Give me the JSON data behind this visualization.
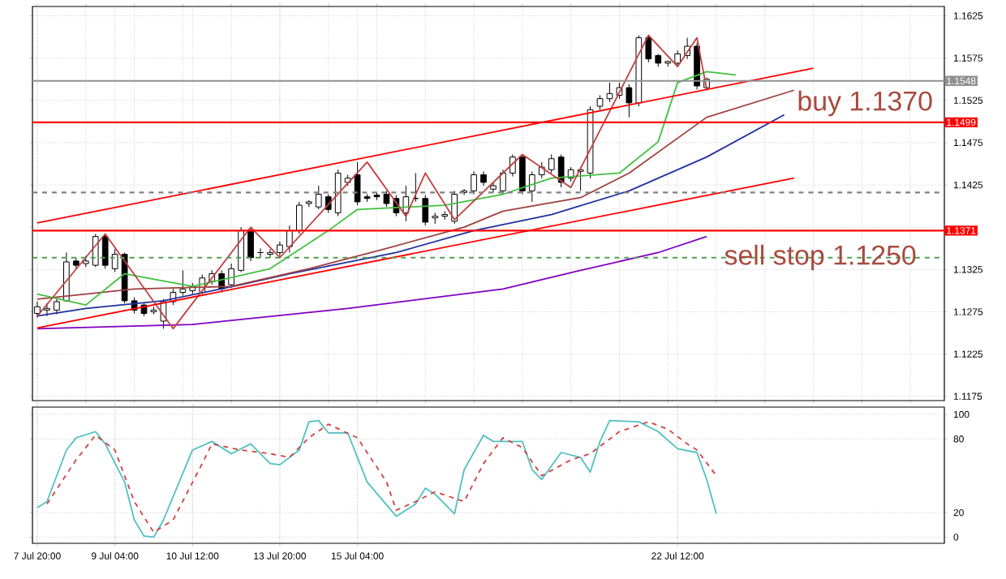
{
  "chart_data": [
    {
      "type": "candlestick",
      "categories": [
        null,
        null,
        null,
        null,
        null,
        null,
        null,
        null,
        null,
        null,
        null,
        null,
        null,
        null,
        null,
        null,
        null,
        null,
        null,
        null,
        null,
        null,
        null,
        null,
        null,
        null,
        null,
        null,
        null,
        null,
        null,
        null,
        null,
        null,
        null,
        null,
        null,
        null,
        null,
        null,
        null,
        null,
        null,
        null,
        null,
        null,
        null,
        null,
        null,
        null,
        null,
        null,
        null,
        null,
        null,
        null,
        null,
        null,
        null,
        null,
        null,
        null,
        null,
        null,
        null,
        null,
        null,
        null,
        null,
        null,
        null,
        null,
        null,
        null,
        null,
        null,
        null,
        null,
        null,
        null,
        null,
        null,
        null,
        null,
        null,
        null,
        null,
        null,
        null,
        null,
        null,
        null,
        null,
        null
      ],
      "ohlc": [
        [
          1.1273,
          1.1287,
          1.1268,
          1.1281
        ],
        [
          1.1277,
          1.1285,
          1.127,
          1.1279
        ],
        [
          1.1277,
          1.129,
          1.1272,
          1.1287
        ],
        [
          1.1288,
          1.1345,
          1.1287,
          1.1334
        ],
        [
          1.1335,
          1.1339,
          1.1326,
          1.133
        ],
        [
          1.1332,
          1.1341,
          1.1328,
          1.1335
        ],
        [
          1.133,
          1.1367,
          1.1328,
          1.1364
        ],
        [
          1.1364,
          1.1367,
          1.1326,
          1.133
        ],
        [
          1.1326,
          1.1349,
          1.1322,
          1.1343
        ],
        [
          1.1343,
          1.1345,
          1.1285,
          1.1288
        ],
        [
          1.1288,
          1.1292,
          1.1273,
          1.1277
        ],
        [
          1.1283,
          1.1285,
          1.127,
          1.1273
        ],
        [
          1.1275,
          1.1281,
          1.1272,
          1.1277
        ],
        [
          1.1264,
          1.129,
          1.1255,
          1.1287
        ],
        [
          1.1287,
          1.1302,
          1.1283,
          1.1298
        ],
        [
          1.1298,
          1.1324,
          1.1294,
          1.1302
        ],
        [
          1.13,
          1.1309,
          1.1296,
          1.1305
        ],
        [
          1.1298,
          1.1319,
          1.1296,
          1.1315
        ],
        [
          1.1311,
          1.1324,
          1.1307,
          1.132
        ],
        [
          1.132,
          1.1324,
          1.1298,
          1.1302
        ],
        [
          1.1307,
          1.1332,
          1.1303,
          1.1326
        ],
        [
          1.1324,
          1.1375,
          1.1322,
          1.1371
        ],
        [
          1.1371,
          1.1375,
          1.1335,
          1.1339
        ],
        [
          1.1345,
          1.135,
          1.1339,
          1.1345
        ],
        [
          1.1343,
          1.1349,
          1.1339,
          1.1345
        ],
        [
          1.1345,
          1.1358,
          1.1341,
          1.1354
        ],
        [
          1.1352,
          1.1377,
          1.1345,
          1.1371
        ],
        [
          1.1371,
          1.1405,
          1.1367,
          1.1401
        ],
        [
          1.1403,
          1.1407,
          1.1399,
          1.1405
        ],
        [
          1.1399,
          1.1424,
          1.1396,
          1.1414
        ],
        [
          1.1411,
          1.1414,
          1.1392,
          1.1396
        ],
        [
          1.1392,
          1.1443,
          1.1388,
          1.1439
        ],
        [
          1.1428,
          1.1437,
          1.1424,
          1.1433
        ],
        [
          1.1437,
          1.1452,
          1.1401,
          1.1405
        ],
        [
          1.1411,
          1.1414,
          1.1405,
          1.1409
        ],
        [
          1.1413,
          1.1416,
          1.1407,
          1.1411
        ],
        [
          1.1414,
          1.1418,
          1.1399,
          1.1403
        ],
        [
          1.1409,
          1.1413,
          1.1388,
          1.1392
        ],
        [
          1.1392,
          1.1424,
          1.1382,
          1.1411
        ],
        [
          1.1409,
          1.1439,
          1.1405,
          1.1409
        ],
        [
          1.1409,
          1.1413,
          1.1377,
          1.1381
        ],
        [
          1.1386,
          1.1392,
          1.1379,
          1.1388
        ],
        [
          1.1388,
          1.1394,
          1.1384,
          1.139
        ],
        [
          1.1382,
          1.1418,
          1.1379,
          1.1414
        ],
        [
          1.1416,
          1.142,
          1.1413,
          1.1418
        ],
        [
          1.1418,
          1.1441,
          1.1414,
          1.1437
        ],
        [
          1.1437,
          1.1441,
          1.1424,
          1.1428
        ],
        [
          1.142,
          1.1428,
          1.1416,
          1.1424
        ],
        [
          1.1418,
          1.1443,
          1.1414,
          1.1439
        ],
        [
          1.1439,
          1.1461,
          1.1435,
          1.1458
        ],
        [
          1.1458,
          1.1461,
          1.1414,
          1.1418
        ],
        [
          1.1418,
          1.1441,
          1.1405,
          1.1437
        ],
        [
          1.1437,
          1.1452,
          1.1433,
          1.1446
        ],
        [
          1.1443,
          1.1461,
          1.1439,
          1.1456
        ],
        [
          1.1458,
          1.1461,
          1.1422,
          1.1428
        ],
        [
          1.1433,
          1.1446,
          1.1429,
          1.1443
        ],
        [
          1.1441,
          1.1446,
          1.1418,
          1.1443
        ],
        [
          1.1439,
          1.1518,
          1.1433,
          1.1514
        ],
        [
          1.1518,
          1.1531,
          1.1514,
          1.1527
        ],
        [
          1.1527,
          1.1546,
          1.1523,
          1.1533
        ],
        [
          1.1531,
          1.1546,
          1.1527,
          1.154
        ],
        [
          1.154,
          1.1544,
          1.1505,
          1.1522
        ],
        [
          1.1522,
          1.1602,
          1.1518,
          1.1599
        ],
        [
          1.1599,
          1.1601,
          1.157,
          1.1574
        ],
        [
          1.1578,
          1.158,
          1.1565,
          1.1569
        ],
        [
          1.1569,
          1.1572,
          1.1565,
          1.1571
        ],
        [
          1.1569,
          1.1584,
          1.1565,
          1.158
        ],
        [
          1.1578,
          1.1599,
          1.1574,
          1.1589
        ],
        [
          1.1589,
          1.1593,
          1.1538,
          1.1542
        ],
        [
          1.154,
          1.1552,
          1.1538,
          1.155
        ],
        null,
        null,
        null,
        null,
        null,
        null,
        null,
        null,
        null,
        null,
        null,
        null,
        null,
        null,
        null,
        null,
        null,
        null,
        null,
        null,
        null,
        null,
        null,
        null
      ],
      "series": [
        {
          "type": "line",
          "color": "#8000c0",
          "values": [
            1.1255,
            null,
            null,
            null,
            null,
            null,
            null,
            null,
            null,
            null,
            null,
            null,
            null,
            null,
            null,
            null,
            1.126,
            null,
            null,
            null,
            null,
            null,
            null,
            null,
            null,
            null,
            null,
            null,
            null,
            null,
            null,
            null,
            1.1279,
            null,
            null,
            null,
            null,
            null,
            null,
            null,
            null,
            null,
            null,
            null,
            null,
            null,
            null,
            null,
            1.1302,
            null,
            null,
            null,
            null,
            null,
            null,
            null,
            1.1324,
            null,
            null,
            null,
            null,
            null,
            null,
            null,
            1.1345,
            null,
            null,
            null,
            null,
            1.1364,
            null,
            null,
            null,
            null,
            null,
            null,
            null,
            null,
            null,
            null,
            null,
            null,
            null,
            null,
            null,
            null,
            null,
            null,
            null,
            null,
            null,
            null,
            null,
            null
          ]
        },
        {
          "type": "line",
          "color": "#2030a0",
          "values": [
            1.127,
            null,
            null,
            null,
            null,
            1.1279,
            null,
            null,
            null,
            null,
            null,
            null,
            null,
            1.1288,
            null,
            null,
            null,
            null,
            null,
            null,
            null,
            1.1307,
            null,
            null,
            null,
            null,
            1.132,
            null,
            null,
            null,
            null,
            null,
            null,
            null,
            null,
            null,
            null,
            1.1345,
            null,
            null,
            null,
            null,
            null,
            null,
            null,
            1.1371,
            null,
            null,
            null,
            null,
            null,
            null,
            null,
            1.139,
            null,
            null,
            null,
            null,
            null,
            null,
            null,
            1.1418,
            null,
            null,
            null,
            null,
            null,
            null,
            null,
            1.1458,
            null,
            null,
            null,
            null,
            null,
            null,
            null,
            1.1508,
            null,
            null,
            null,
            null,
            null,
            null,
            null,
            null,
            null,
            null,
            null,
            null,
            null,
            null,
            null,
            null
          ]
        },
        {
          "type": "line",
          "color": "#a04040",
          "values": [
            1.129,
            null,
            null,
            null,
            null,
            null,
            null,
            null,
            null,
            null,
            1.1302,
            null,
            null,
            null,
            null,
            null,
            null,
            null,
            null,
            null,
            1.1305,
            null,
            null,
            null,
            null,
            null,
            null,
            null,
            1.1326,
            null,
            null,
            null,
            null,
            null,
            null,
            null,
            1.135,
            null,
            null,
            null,
            null,
            null,
            null,
            null,
            1.1375,
            null,
            null,
            null,
            1.1394,
            null,
            null,
            null,
            null,
            null,
            null,
            null,
            1.141,
            null,
            null,
            null,
            null,
            1.1439,
            null,
            null,
            null,
            null,
            null,
            null,
            null,
            1.1505,
            null,
            null,
            null,
            null,
            null,
            null,
            null,
            null,
            1.1537,
            null,
            null,
            null,
            null,
            null,
            null,
            null,
            null,
            null,
            null,
            null,
            null,
            null,
            null,
            null
          ]
        },
        {
          "type": "line",
          "color": "#40c040",
          "values": [
            1.1296,
            null,
            null,
            null,
            null,
            1.1283,
            null,
            null,
            null,
            1.132,
            null,
            null,
            null,
            null,
            null,
            null,
            1.1305,
            null,
            null,
            null,
            null,
            null,
            null,
            null,
            1.1326,
            null,
            null,
            null,
            null,
            null,
            1.1371,
            null,
            null,
            1.1396,
            null,
            null,
            null,
            null,
            null,
            null,
            null,
            null,
            1.1401,
            null,
            null,
            null,
            null,
            null,
            1.1414,
            null,
            null,
            null,
            null,
            1.1433,
            null,
            null,
            null,
            null,
            null,
            null,
            1.1439,
            null,
            null,
            null,
            1.1476,
            null,
            1.1546,
            null,
            null,
            1.1559,
            null,
            null,
            1.1555,
            null,
            null,
            null,
            null,
            null,
            null,
            null,
            null,
            null,
            null,
            null,
            null,
            null,
            null,
            null,
            null,
            null,
            null,
            null,
            null,
            null
          ]
        },
        {
          "type": "line",
          "color": "#c04040",
          "values": [
            1.127,
            null,
            null,
            null,
            null,
            null,
            null,
            1.1367,
            null,
            null,
            null,
            null,
            null,
            null,
            1.1255,
            null,
            null,
            null,
            null,
            null,
            null,
            null,
            1.1375,
            null,
            null,
            1.1339,
            null,
            null,
            null,
            null,
            null,
            null,
            null,
            null,
            1.1452,
            null,
            null,
            null,
            1.1388,
            null,
            1.1439,
            null,
            null,
            1.1384,
            null,
            null,
            null,
            null,
            null,
            null,
            1.1461,
            null,
            null,
            null,
            null,
            1.1422,
            null,
            null,
            null,
            null,
            null,
            null,
            null,
            1.1602,
            null,
            null,
            1.1565,
            null,
            1.1599,
            1.1538,
            null,
            null,
            null,
            null,
            null,
            null,
            null,
            null,
            null,
            null,
            null,
            null,
            null,
            null,
            null,
            null,
            null,
            null,
            null,
            null,
            null,
            null,
            null,
            null
          ]
        },
        {
          "type": "line",
          "color": "#ff0000",
          "values": [
            1.138,
            null,
            null,
            null,
            null,
            null,
            null,
            null,
            null,
            null,
            null,
            null,
            null,
            null,
            null,
            null,
            null,
            null,
            null,
            null,
            null,
            null,
            null,
            null,
            null,
            null,
            null,
            null,
            null,
            null,
            null,
            null,
            null,
            null,
            null,
            null,
            null,
            null,
            null,
            null,
            null,
            null,
            null,
            null,
            null,
            null,
            null,
            null,
            null,
            null,
            null,
            null,
            null,
            null,
            null,
            null,
            null,
            null,
            null,
            null,
            null,
            null,
            null,
            null,
            null,
            null,
            null,
            null,
            null,
            null,
            null,
            null,
            null,
            null,
            null,
            null,
            null,
            null,
            null,
            null,
            1.1563,
            null,
            null,
            null,
            null,
            null,
            null,
            null,
            null,
            null,
            null,
            null,
            null,
            null
          ]
        },
        {
          "type": "line",
          "color": "#ff0000",
          "values": [
            1.1256,
            null,
            null,
            null,
            null,
            null,
            null,
            null,
            null,
            null,
            null,
            null,
            null,
            null,
            null,
            null,
            null,
            null,
            null,
            null,
            null,
            null,
            null,
            null,
            null,
            null,
            null,
            null,
            null,
            null,
            null,
            null,
            null,
            null,
            null,
            null,
            null,
            null,
            null,
            null,
            null,
            null,
            null,
            null,
            null,
            null,
            null,
            null,
            null,
            null,
            null,
            null,
            null,
            null,
            null,
            null,
            null,
            null,
            null,
            null,
            null,
            null,
            null,
            null,
            null,
            null,
            null,
            null,
            null,
            null,
            null,
            null,
            null,
            null,
            null,
            null,
            null,
            null,
            1.1433,
            null,
            null,
            null,
            null,
            null,
            null,
            null,
            null,
            null,
            null,
            null,
            null,
            null,
            null,
            null
          ]
        }
      ],
      "ylim": [
        1.117,
        1.1636
      ],
      "yticks": [
        1.1175,
        1.1225,
        1.1275,
        1.1325,
        {
          "value": 1.1375,
          "label": null
        },
        1.1425,
        1.1475,
        1.1525,
        1.1575,
        1.1625
      ],
      "grid": true,
      "ref_lines": [
        {
          "axis": "y",
          "value": 1.1548,
          "label": "1.1548",
          "color": "#909090"
        },
        {
          "axis": "y",
          "value": 1.1499,
          "label": "1.1499",
          "color": "#ff0000"
        },
        {
          "axis": "y",
          "value": 1.1416,
          "color": "#808080",
          "line_style": "dashed"
        },
        {
          "axis": "y",
          "value": 1.1371,
          "label": "1.1371",
          "color": "#ff0000"
        },
        {
          "axis": "y",
          "value": 1.1339,
          "color": "#50a050",
          "line_style": "dashed"
        }
      ],
      "annotations": [
        "buy 1.1370",
        "sell stop 1.1250"
      ]
    },
    {
      "type": "line",
      "categories": [
        "7 Jul 20:00",
        null,
        null,
        null,
        null,
        null,
        null,
        null,
        "9 Jul 04:00",
        null,
        null,
        null,
        null,
        null,
        null,
        null,
        "10 Jul 12:00",
        null,
        null,
        null,
        null,
        null,
        null,
        null,
        null,
        "13 Jul 20:00",
        null,
        null,
        null,
        null,
        null,
        null,
        null,
        "15 Jul 04:00",
        null,
        null,
        null,
        null,
        null,
        null,
        null,
        null,
        null,
        null,
        null,
        null,
        null,
        null,
        null,
        null,
        null,
        null,
        null,
        null,
        null,
        null,
        null,
        null,
        null,
        null,
        null,
        null,
        null,
        null,
        null,
        null,
        "22 Jul 12:00",
        null,
        null,
        null,
        null,
        null,
        null,
        null,
        null,
        null,
        null,
        null,
        null,
        null,
        null,
        null,
        null,
        null,
        null,
        null,
        null,
        null,
        null,
        null,
        null,
        null,
        null,
        null
      ],
      "series": [
        {
          "color": "#50c0c0",
          "values": [
            24,
            29,
            null,
            71,
            81,
            null,
            86,
            76,
            null,
            45,
            14,
            1,
            0,
            14,
            null,
            null,
            71,
            null,
            78,
            null,
            68,
            null,
            76,
            null,
            60,
            59,
            null,
            71,
            94,
            95,
            85,
            null,
            85,
            null,
            45,
            null,
            null,
            17,
            null,
            27,
            40,
            35,
            null,
            19,
            55,
            null,
            83,
            78,
            null,
            null,
            78,
            55,
            47,
            null,
            69,
            null,
            65,
            53,
            78,
            95,
            null,
            null,
            94,
            null,
            86,
            null,
            72,
            null,
            69,
            47,
            19,
            null,
            null,
            null,
            null,
            null,
            null,
            null,
            null,
            null,
            null,
            null,
            null,
            null,
            null,
            null,
            null,
            null,
            null,
            null,
            null,
            null,
            null,
            null
          ]
        },
        {
          "color": "#d04040",
          "line_style": "dashed",
          "values": [
            null,
            27,
            null,
            null,
            63,
            null,
            83,
            null,
            71,
            null,
            29,
            null,
            4,
            null,
            14,
            null,
            null,
            60,
            76,
            null,
            null,
            71,
            null,
            null,
            68,
            null,
            65,
            null,
            81,
            null,
            92,
            null,
            null,
            81,
            null,
            null,
            45,
            22,
            null,
            29,
            null,
            37,
            null,
            null,
            29,
            null,
            60,
            null,
            81,
            null,
            73,
            null,
            50,
            null,
            null,
            63,
            null,
            68,
            null,
            null,
            86,
            null,
            null,
            94,
            null,
            88,
            null,
            76,
            71,
            null,
            50,
            null,
            null,
            null,
            null,
            null,
            null,
            null,
            null,
            null,
            null,
            null,
            null,
            null,
            null,
            null,
            null,
            null,
            null,
            null,
            null,
            null,
            null,
            null
          ]
        }
      ],
      "ylim": [
        -5,
        106
      ],
      "yticks": [
        0,
        20,
        80,
        100
      ],
      "grid": true
    }
  ]
}
